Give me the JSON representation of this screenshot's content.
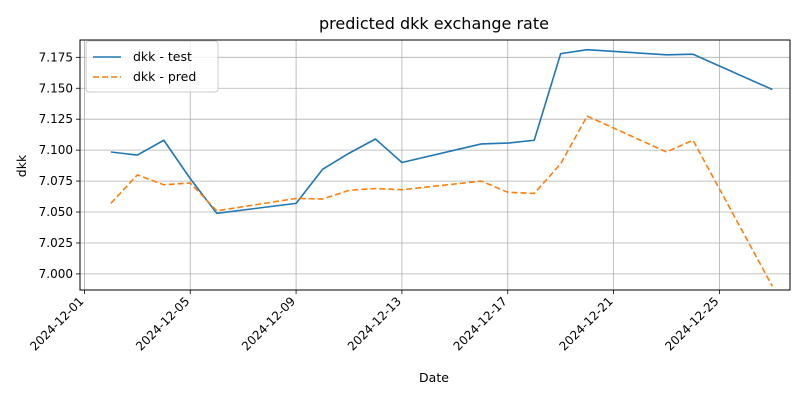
{
  "chart_data": {
    "type": "line",
    "title": "predicted dkk exchange rate",
    "xlabel": "Date",
    "ylabel": "dkk",
    "xlim": [
      "2024-11-30T20:00",
      "2024-12-27T16:00"
    ],
    "ylim": [
      6.987,
      7.189
    ],
    "x_ticks": [
      "2024-12-01",
      "2024-12-05",
      "2024-12-09",
      "2024-12-13",
      "2024-12-17",
      "2024-12-21",
      "2024-12-25"
    ],
    "y_ticks": [
      "7.000",
      "7.025",
      "7.050",
      "7.075",
      "7.100",
      "7.125",
      "7.150",
      "7.175"
    ],
    "grid": true,
    "legend_position": "top-left",
    "x": [
      "2024-12-02",
      "2024-12-03",
      "2024-12-04",
      "2024-12-05",
      "2024-12-06",
      "2024-12-09",
      "2024-12-10",
      "2024-12-11",
      "2024-12-12",
      "2024-12-13",
      "2024-12-16",
      "2024-12-17",
      "2024-12-18",
      "2024-12-19",
      "2024-12-20",
      "2024-12-23",
      "2024-12-24",
      "2024-12-27"
    ],
    "series": [
      {
        "name": "dkk - test",
        "color": "#1f77b4",
        "dash": "solid",
        "values": [
          7.0985,
          7.096,
          7.108,
          7.077,
          7.049,
          7.057,
          7.0845,
          7.0975,
          7.109,
          7.09,
          7.105,
          7.1057,
          7.108,
          7.178,
          7.1812,
          7.177,
          7.1775,
          7.149
        ]
      },
      {
        "name": "dkk - pred",
        "color": "#ff7f0e",
        "dash": "dashed",
        "values": [
          7.057,
          7.08,
          7.072,
          7.0735,
          7.051,
          7.061,
          7.0605,
          7.0675,
          7.069,
          7.068,
          7.075,
          7.066,
          7.065,
          7.089,
          7.1275,
          7.0985,
          7.108,
          6.99
        ]
      }
    ]
  }
}
